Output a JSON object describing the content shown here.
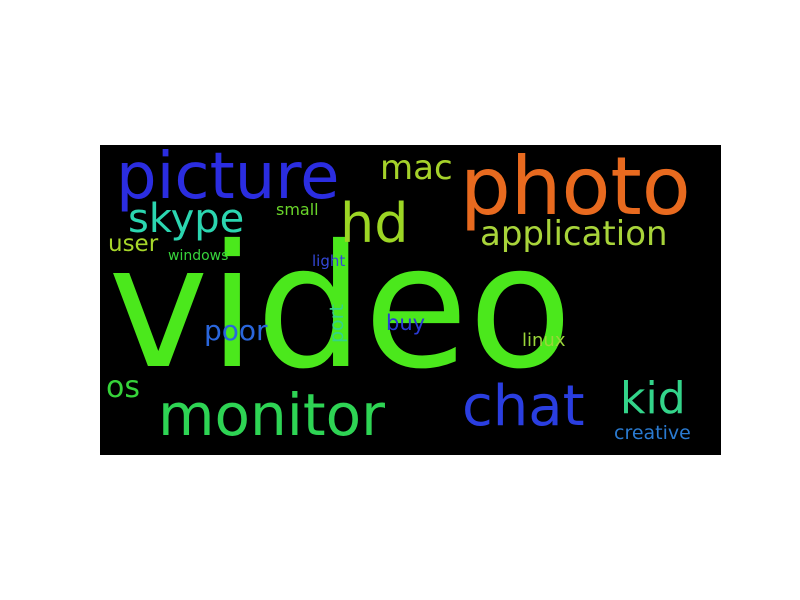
{
  "wordcloud": {
    "background": "#000000",
    "words": [
      {
        "id": "video",
        "text": "video",
        "color": "#4be81c"
      },
      {
        "id": "photo",
        "text": "photo",
        "color": "#e86a1f"
      },
      {
        "id": "picture",
        "text": "picture",
        "color": "#2b2de0"
      },
      {
        "id": "hd",
        "text": "hd",
        "color": "#9cd624"
      },
      {
        "id": "mac",
        "text": "mac",
        "color": "#a5d22a"
      },
      {
        "id": "skype",
        "text": "skype",
        "color": "#2bd6b0"
      },
      {
        "id": "small",
        "text": "small",
        "color": "#6ad62a"
      },
      {
        "id": "application",
        "text": "application",
        "color": "#a8d43a"
      },
      {
        "id": "user",
        "text": "user",
        "color": "#a6d62a"
      },
      {
        "id": "windows",
        "text": "windows",
        "color": "#37d43c"
      },
      {
        "id": "light",
        "text": "light",
        "color": "#3448d8"
      },
      {
        "id": "port",
        "text": "port",
        "color": "#34d486"
      },
      {
        "id": "poor",
        "text": "poor",
        "color": "#2a66dc"
      },
      {
        "id": "buy",
        "text": "buy",
        "color": "#2a3ad6"
      },
      {
        "id": "linux",
        "text": "linux",
        "color": "#9ad63a"
      },
      {
        "id": "os",
        "text": "os",
        "color": "#36d43a"
      },
      {
        "id": "monitor",
        "text": "monitor",
        "color": "#2ed454"
      },
      {
        "id": "chat",
        "text": "chat",
        "color": "#2a3ee0"
      },
      {
        "id": "kid",
        "text": "kid",
        "color": "#33d48a"
      },
      {
        "id": "creative",
        "text": "creative",
        "color": "#2a7ad0"
      }
    ]
  }
}
